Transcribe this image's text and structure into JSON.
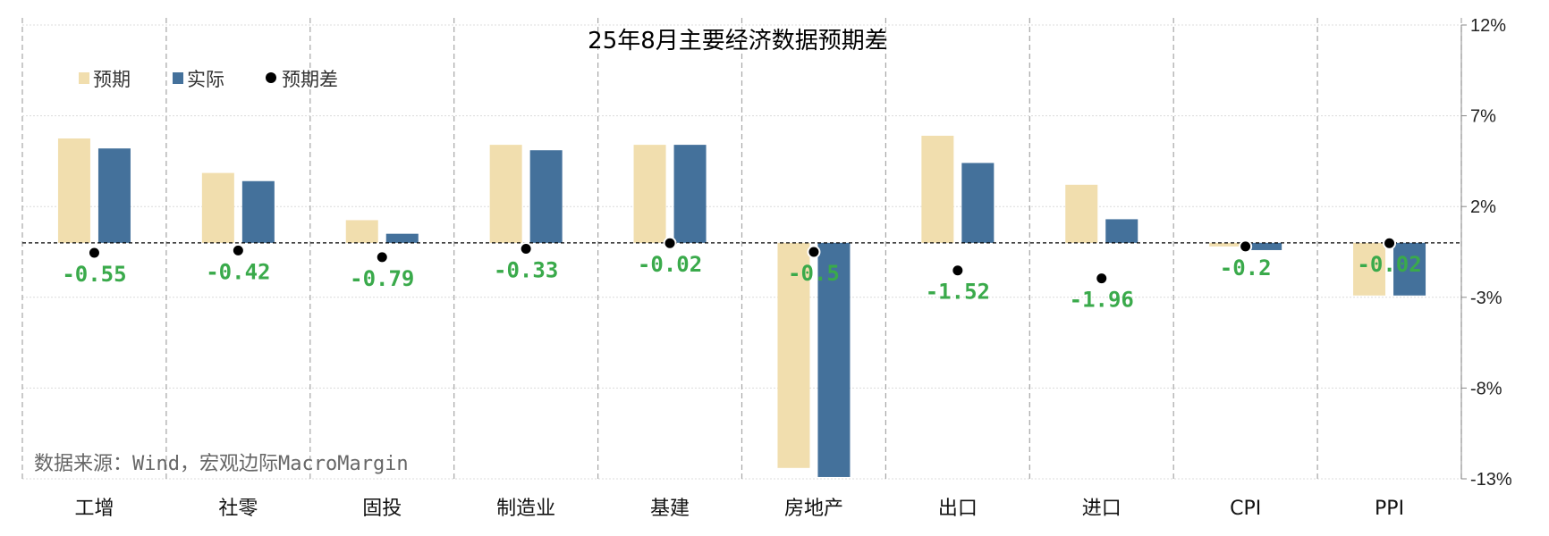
{
  "chart_data": {
    "type": "bar",
    "title": "25年8月主要经济数据预期差",
    "categories": [
      "工增",
      "社零",
      "固投",
      "制造业",
      "基建",
      "房地产",
      "出口",
      "进口",
      "CPI",
      "PPI"
    ],
    "series": [
      {
        "name": "预期",
        "color": "#f1deae",
        "values": [
          5.75,
          3.85,
          1.25,
          5.4,
          5.4,
          -12.4,
          5.9,
          3.2,
          -0.2,
          -2.9
        ]
      },
      {
        "name": "实际",
        "color": "#44719b",
        "values": [
          5.2,
          3.4,
          0.5,
          5.1,
          5.4,
          -12.9,
          4.4,
          1.3,
          -0.4,
          -2.9
        ]
      }
    ],
    "diff": {
      "name": "预期差",
      "color": "#000000",
      "values": [
        -0.55,
        -0.42,
        -0.79,
        -0.33,
        -0.02,
        -0.5,
        -1.52,
        -1.96,
        -0.2,
        -0.02
      ],
      "labels": [
        "-0.55",
        "-0.42",
        "-0.79",
        "-0.33",
        "-0.02",
        "-0.5",
        "-1.52",
        "-1.96",
        "-0.2",
        "-0.02"
      ],
      "label_color": "#3aaa4b"
    },
    "ylim": [
      -13,
      12
    ],
    "yticks": [
      12,
      7,
      2,
      -3,
      -8,
      -13
    ],
    "ytick_labels": [
      "12%",
      "7%",
      "2%",
      "-3%",
      "-8%",
      "-13%"
    ],
    "y_axis_side": "right",
    "grid": true,
    "legend_position": "top-left",
    "source_note": "数据来源：Wind，宏观边际MacroMargin"
  }
}
